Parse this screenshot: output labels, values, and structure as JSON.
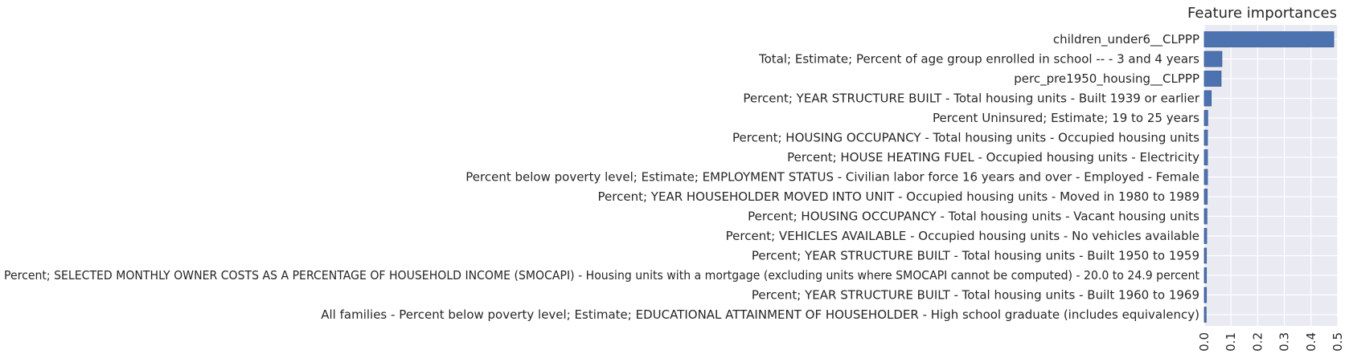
{
  "chart_data": {
    "type": "bar",
    "orientation": "horizontal",
    "title": "Feature importances",
    "xlabel": "",
    "ylabel": "",
    "xlim": [
      0,
      0.5
    ],
    "x_ticks": [
      "0.0",
      "0.1",
      "0.2",
      "0.3",
      "0.4",
      "0.5"
    ],
    "x_tick_rotation": 90,
    "grid": true,
    "legend": "none",
    "colors": {
      "bar": "#4c72b0",
      "background": "#eaeaf2",
      "grid": "#ffffff"
    },
    "categories": [
      "children_under6__CLPPP",
      "Total; Estimate; Percent of age group enrolled in school -- - 3 and 4 years",
      "perc_pre1950_housing__CLPPP",
      "Percent; YEAR STRUCTURE BUILT - Total housing units - Built 1939 or earlier",
      "Percent Uninsured; Estimate; 19 to 25 years",
      "Percent; HOUSING OCCUPANCY - Total housing units - Occupied housing units",
      "Percent; HOUSE HEATING FUEL - Occupied housing units - Electricity",
      "Percent below poverty level; Estimate; EMPLOYMENT STATUS - Civilian labor force 16 years and over - Employed - Female",
      "Percent; YEAR HOUSEHOLDER MOVED INTO UNIT - Occupied housing units - Moved in 1980 to 1989",
      "Percent; HOUSING OCCUPANCY - Total housing units - Vacant housing units",
      "Percent; VEHICLES AVAILABLE - Occupied housing units - No vehicles available",
      "Percent; YEAR STRUCTURE BUILT - Total housing units - Built 1950 to 1959",
      "Percent; SELECTED MONTHLY OWNER COSTS AS A PERCENTAGE OF HOUSEHOLD INCOME (SMOCAPI) - Housing units with a mortgage (excluding units where SMOCAPI cannot be computed) - 20.0 to 24.9 percent",
      "Percent; YEAR STRUCTURE BUILT - Total housing units - Built 1960 to 1969",
      "All families  - Percent below poverty level; Estimate; EDUCATIONAL ATTAINMENT OF HOUSEHOLDER - High school graduate (includes equivalency)"
    ],
    "values": [
      0.485,
      0.066,
      0.063,
      0.026,
      0.013,
      0.012,
      0.012,
      0.012,
      0.011,
      0.01,
      0.009,
      0.008,
      0.008,
      0.008,
      0.007
    ]
  }
}
